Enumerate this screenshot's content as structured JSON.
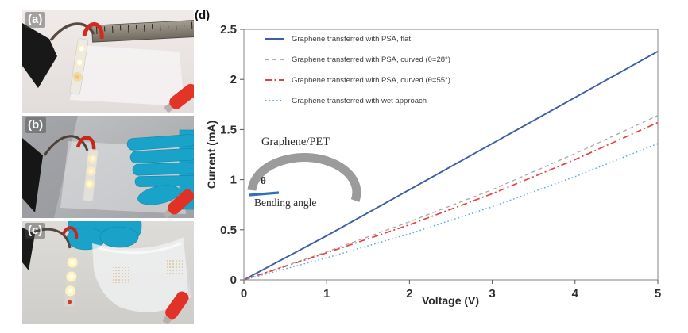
{
  "figure": {
    "panel_labels": {
      "a": "(a)",
      "b": "(b)",
      "c": "(c)",
      "d": "(d)"
    }
  },
  "chart_data": {
    "type": "line",
    "title": "",
    "xlabel": "Voltage (V)",
    "ylabel": "Current (mA)",
    "xlim": [
      0,
      5
    ],
    "ylim": [
      0,
      2.5
    ],
    "xticks": [
      0,
      1,
      2,
      3,
      4,
      5
    ],
    "yticks": [
      0,
      0.5,
      1,
      1.5,
      2,
      2.5
    ],
    "grid": false,
    "legend_position": "upper-left inside",
    "x": [
      0,
      1,
      2,
      3,
      4,
      5
    ],
    "series": [
      {
        "name": "Graphene transferred with PSA, flat",
        "style": "solid",
        "color": "#3d5fa5",
        "values": [
          0,
          0.44,
          0.9,
          1.36,
          1.82,
          2.28
        ]
      },
      {
        "name": "Graphene transferred with PSA, curved (θ=28°)",
        "style": "dashed",
        "color": "#a8a8a8",
        "values": [
          0,
          0.28,
          0.58,
          0.9,
          1.26,
          1.64
        ]
      },
      {
        "name": "Graphene transferred with PSA, curved (θ=55°)",
        "style": "dash-dot",
        "color": "#e8423c",
        "values": [
          0,
          0.27,
          0.55,
          0.86,
          1.2,
          1.57
        ]
      },
      {
        "name": "Graphene transferred with wet approach",
        "style": "dotted",
        "color": "#58abdf",
        "values": [
          0,
          0.22,
          0.46,
          0.73,
          1.03,
          1.36
        ]
      }
    ],
    "inset": {
      "top_label": "Graphene/PET",
      "theta": "θ",
      "bottom_label": "Bending angle"
    }
  }
}
